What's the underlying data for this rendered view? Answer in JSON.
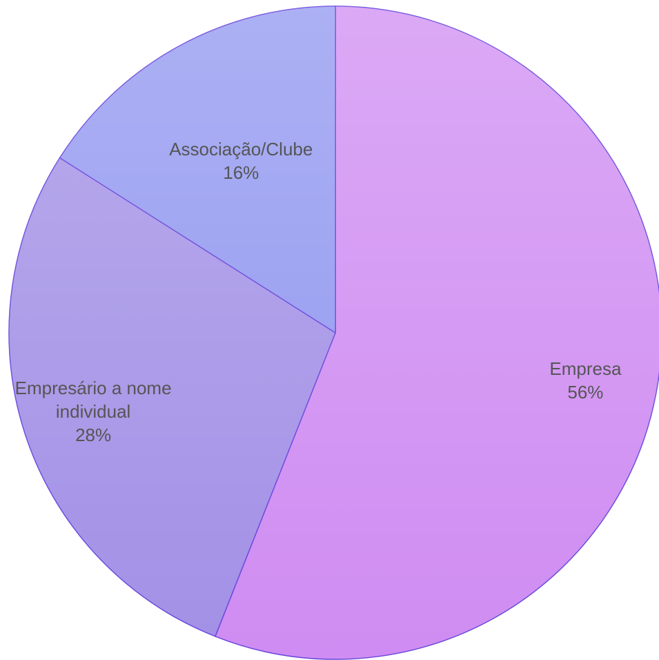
{
  "chart_data": {
    "type": "pie",
    "categories": [
      "Empresa",
      "Empresário a nome individual",
      "Associação/Clube"
    ],
    "values": [
      56,
      28,
      16
    ],
    "value_labels": [
      "56%",
      "28%",
      "16%"
    ],
    "colors": [
      "#cf8cf2",
      "#a290e6",
      "#9096f0"
    ]
  }
}
